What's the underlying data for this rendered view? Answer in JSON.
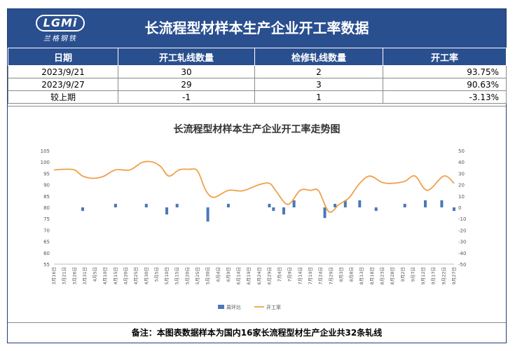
{
  "header": {
    "logo_text": "LGMi",
    "logo_sub": "兰格钢铁",
    "title": "长流程型材样本生产企业开工率数据"
  },
  "table": {
    "columns": [
      "日期",
      "开工轧线数量",
      "检修轧线数量",
      "开工率"
    ],
    "rows": [
      [
        "2023/9/21",
        "30",
        "2",
        "93.75%"
      ],
      [
        "2023/9/27",
        "29",
        "3",
        "90.63%"
      ],
      [
        "较上期",
        "-1",
        "1",
        "-3.13%"
      ]
    ]
  },
  "colors": {
    "header_bg": "#2a4f8f",
    "bar": "#4a78b8",
    "line": "#f0a04b"
  },
  "chart_data": {
    "type": "bar+line",
    "title": "长流程型材样本生产企业开工率走势图",
    "categories": [
      "3月16日",
      "3月21日",
      "3月26日",
      "3月31日",
      "4月5日",
      "4月10日",
      "4月15日",
      "4月20日",
      "4月25日",
      "4月30日",
      "5月5日",
      "5月10日",
      "5月15日",
      "5月20日",
      "5月25日",
      "5月30日",
      "6月4日",
      "6月9日",
      "6月14日",
      "6月19日",
      "6月24日",
      "6月29日",
      "7月4日",
      "7月9日",
      "7月14日",
      "7月19日",
      "7月24日",
      "7月29日",
      "8月3日",
      "8月8日",
      "8月13日",
      "8月18日",
      "8月23日",
      "8月28日",
      "9月2日",
      "9月7日",
      "9月12日",
      "9月17日",
      "9月22日",
      "9月27日"
    ],
    "y_left": {
      "min": 55,
      "max": 105,
      "step": 5
    },
    "y_right": {
      "min": -50,
      "max": 50,
      "step": 10
    },
    "series": [
      {
        "name": "周环比",
        "type": "bar",
        "axis": "right",
        "points": [
          [
            "3月30日",
            -3.13
          ],
          [
            "4月15日",
            3.13
          ],
          [
            "4月30日",
            3.13
          ],
          [
            "5月10日",
            -6.25
          ],
          [
            "5月15日",
            3.13
          ],
          [
            "5月30日",
            -12.5
          ],
          [
            "6月9日",
            3.13
          ],
          [
            "6月29日",
            3.13
          ],
          [
            "7月1日",
            -3.13
          ],
          [
            "7月6日",
            -6.25
          ],
          [
            "7月11日",
            6.25
          ],
          [
            "7月26日",
            -9.38
          ],
          [
            "7月31日",
            3.13
          ],
          [
            "8月5日",
            6.25
          ],
          [
            "8月12日",
            6.25
          ],
          [
            "8月20日",
            -3.13
          ],
          [
            "9月3日",
            3.13
          ],
          [
            "9月13日",
            6.25
          ],
          [
            "9月21日",
            6.25
          ],
          [
            "9月27日",
            -3.13
          ]
        ]
      },
      {
        "name": "开工率",
        "type": "line",
        "axis": "left",
        "points": [
          [
            "3月16日",
            96.5
          ],
          [
            "3月21日",
            96.8
          ],
          [
            "3月26日",
            96.5
          ],
          [
            "3月30日",
            93.8
          ],
          [
            "4月4日",
            92.8
          ],
          [
            "4月9日",
            93.6
          ],
          [
            "4月15日",
            96.5
          ],
          [
            "4月22日",
            96.5
          ],
          [
            "4月28日",
            99.8
          ],
          [
            "5月3日",
            100.0
          ],
          [
            "5月7日",
            98.0
          ],
          [
            "5月11日",
            93.8
          ],
          [
            "5月16日",
            96.5
          ],
          [
            "5月21日",
            96.8
          ],
          [
            "5月25日",
            96.0
          ],
          [
            "5月29日",
            87.5
          ],
          [
            "6月2日",
            84.4
          ],
          [
            "6月9日",
            87.5
          ],
          [
            "6月16日",
            87.3
          ],
          [
            "6月24日",
            90.0
          ],
          [
            "6月29日",
            90.6
          ],
          [
            "7月2日",
            87.5
          ],
          [
            "7月8日",
            81.3
          ],
          [
            "7月14日",
            87.5
          ],
          [
            "7月19日",
            87.5
          ],
          [
            "7月23日",
            87.3
          ],
          [
            "7月28日",
            78.1
          ],
          [
            "8月2日",
            81.3
          ],
          [
            "8月7日",
            84.4
          ],
          [
            "8月12日",
            90.6
          ],
          [
            "8月17日",
            93.8
          ],
          [
            "8月23日",
            91.0
          ],
          [
            "8月28日",
            90.6
          ],
          [
            "9月3日",
            91.5
          ],
          [
            "9月8日",
            93.8
          ],
          [
            "9月14日",
            87.5
          ],
          [
            "9月22日",
            93.8
          ],
          [
            "9月27日",
            90.6
          ]
        ]
      }
    ]
  },
  "footer": {
    "note": "备注：本图表数据样本为国内16家长流程型材生产企业共32条轧线"
  }
}
